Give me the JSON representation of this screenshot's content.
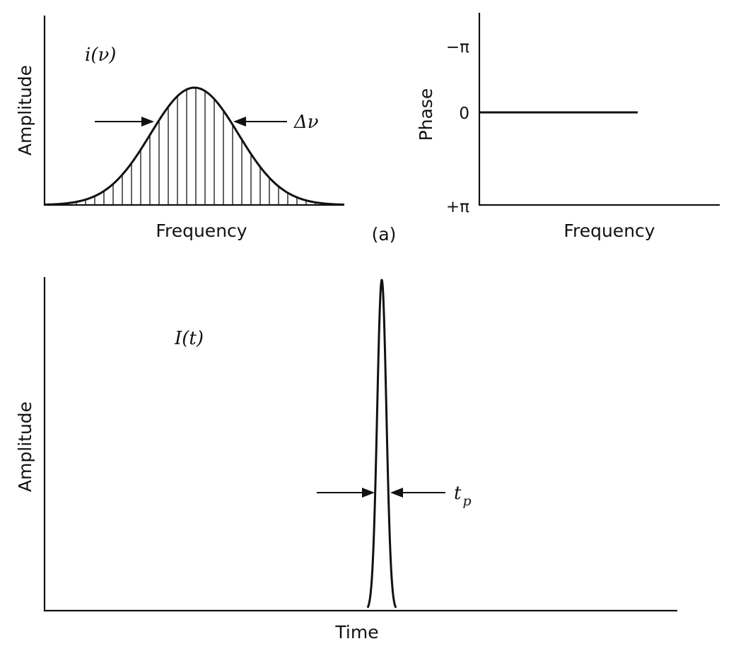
{
  "panel_a_label": "(a)",
  "spectrum": {
    "function_label": "i(ν)",
    "ylabel": "Amplitude",
    "xlabel": "Frequency",
    "width_label": "Δν",
    "shape": "gaussian",
    "hatched": true
  },
  "phase": {
    "ylabel": "Phase",
    "xlabel": "Frequency",
    "ticks": [
      "−π",
      "0",
      "+π"
    ],
    "value": "0"
  },
  "pulse": {
    "function_label": "I(t)",
    "ylabel": "Amplitude",
    "xlabel": "Time",
    "width_label": "tp",
    "width_label_main": "t",
    "width_label_sub": "p",
    "shape": "narrow pulse"
  },
  "colors": {
    "ink": "#111111",
    "background": "#ffffff"
  }
}
